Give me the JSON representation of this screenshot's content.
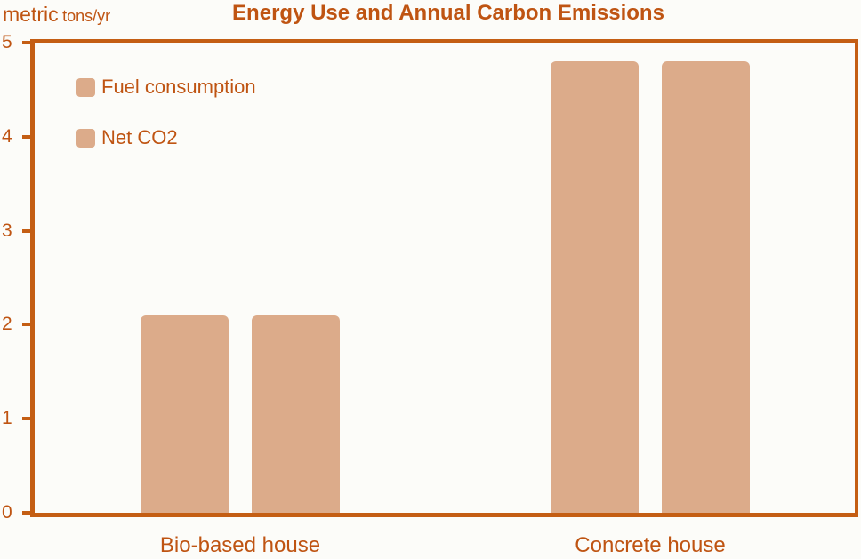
{
  "header": {
    "units_primary": "metric",
    "units_secondary": "tons/yr"
  },
  "chart_data": {
    "type": "bar",
    "title": "Energy Use and Annual Carbon Emissions",
    "xlabel": "",
    "ylabel": "metric tons/yr",
    "categories": [
      "Bio-based house",
      "Concrete house"
    ],
    "series": [
      {
        "name": "Fuel consumption",
        "values": [
          2.1,
          4.8
        ]
      },
      {
        "name": "Net CO2",
        "values": [
          2.1,
          4.8
        ]
      }
    ],
    "ylim": [
      0,
      5
    ],
    "yticks": [
      0,
      1,
      2,
      3,
      4,
      5
    ],
    "grid": false,
    "legend_position": "top-left",
    "colors": {
      "bar": "#dcab8a",
      "text": "#bf5412",
      "axis": "#c45e14",
      "background": "#fcfcf9"
    }
  }
}
